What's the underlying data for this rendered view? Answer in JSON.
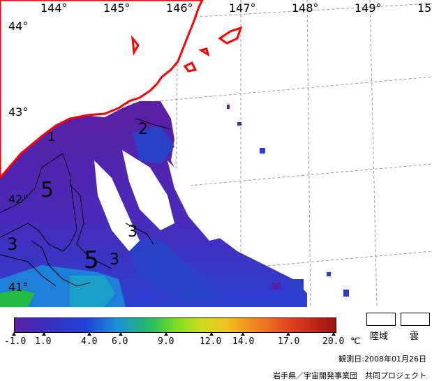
{
  "map": {
    "longitude_labels": [
      "144°",
      "145°",
      "146°",
      "147°",
      "148°",
      "149°",
      "15"
    ],
    "latitude_labels": [
      "44°",
      "43°",
      "42°",
      "41°"
    ],
    "contour_labels": [
      "1",
      "2",
      "5",
      "3",
      "3",
      "5",
      "3"
    ],
    "colors": {
      "coastline": "#ff0000",
      "cold_water": "#5a1fa3",
      "mid_water": "#1f3fd0",
      "warm_water": "#22bb44",
      "cloud": "#ffffff"
    }
  },
  "colorbar": {
    "ticks": [
      "-1.0",
      "1.0",
      "4.0",
      "6.0",
      "9.0",
      "12.0",
      "14.0",
      "17.0",
      "20.0"
    ],
    "unit": "℃"
  },
  "legend": {
    "land_label": "陸域",
    "cloud_label": "雲"
  },
  "footer": {
    "observation_date": "観測日:2008年01月26日",
    "credit": "岩手県／宇宙開発事業団　共同プロジェクト"
  }
}
